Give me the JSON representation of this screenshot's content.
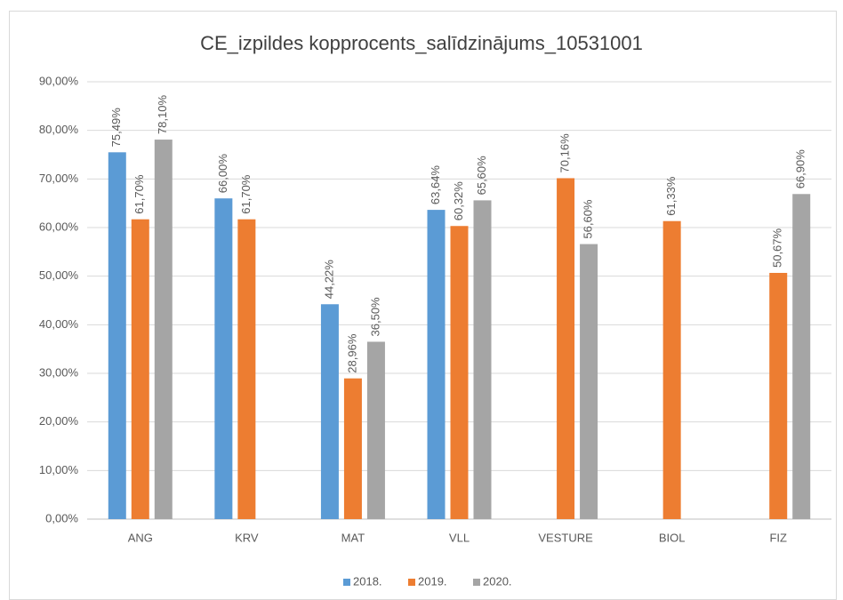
{
  "chart_data": {
    "type": "bar",
    "title": "CE_izpildes kopprocents_salīdzinājums_10531001",
    "categories": [
      "ANG",
      "KRV",
      "MAT",
      "VLL",
      "VESTURE",
      "BIOL",
      "FIZ"
    ],
    "series": [
      {
        "name": "2018.",
        "color": "#5b9bd5",
        "values": [
          75.49,
          66.0,
          44.22,
          63.64,
          null,
          null,
          null
        ],
        "value_labels": [
          "75,49%",
          "66,00%",
          "44,22%",
          "63,64%",
          null,
          null,
          null
        ]
      },
      {
        "name": "2019.",
        "color": "#ed7d31",
        "values": [
          61.7,
          61.7,
          28.96,
          60.32,
          70.16,
          61.33,
          50.67
        ],
        "value_labels": [
          "61,70%",
          "61,70%",
          "28,96%",
          "60,32%",
          "70,16%",
          "61,33%",
          "50,67%"
        ]
      },
      {
        "name": "2020.",
        "color": "#a5a5a5",
        "values": [
          78.1,
          null,
          36.5,
          65.6,
          56.6,
          null,
          66.9
        ],
        "value_labels": [
          "78,10%",
          null,
          "36,50%",
          "65,60%",
          "56,60%",
          null,
          "66,90%"
        ]
      }
    ],
    "ylim": [
      0,
      90
    ],
    "yticks": [
      {
        "value": 0,
        "label": "0,00%"
      },
      {
        "value": 10,
        "label": "10,00%"
      },
      {
        "value": 20,
        "label": "20,00%"
      },
      {
        "value": 30,
        "label": "30,00%"
      },
      {
        "value": 40,
        "label": "40,00%"
      },
      {
        "value": 50,
        "label": "50,00%"
      },
      {
        "value": 60,
        "label": "60,00%"
      },
      {
        "value": 70,
        "label": "70,00%"
      },
      {
        "value": 80,
        "label": "80,00%"
      },
      {
        "value": 90,
        "label": "90,00%"
      }
    ],
    "grid": true,
    "legend": "bottom"
  }
}
